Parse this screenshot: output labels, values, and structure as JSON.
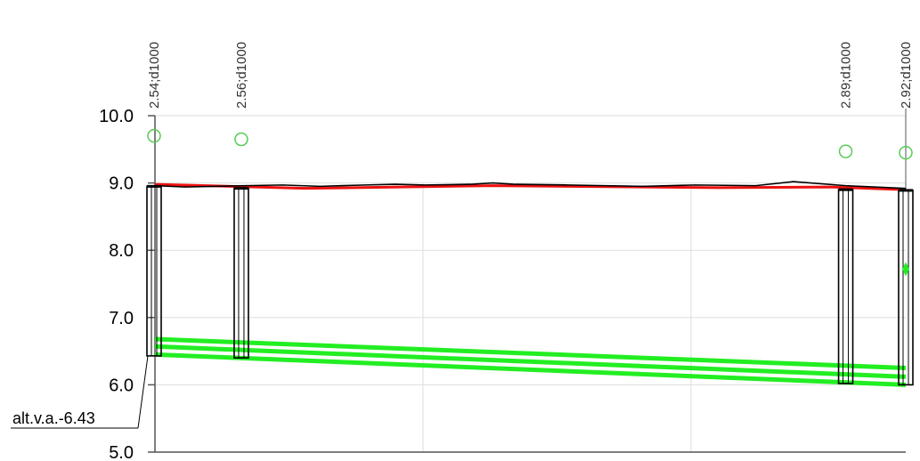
{
  "profile": {
    "y_axis": {
      "ticks": [
        "10.0",
        "9.0",
        "8.0",
        "7.0",
        "6.0",
        "5.0"
      ],
      "range": [
        5.0,
        10.0
      ]
    },
    "wells": [
      {
        "label": "2.54;d1000",
        "station": 0.0,
        "top": 8.95,
        "bottom": 6.43,
        "marker": 9.7
      },
      {
        "label": "2.56;d1000",
        "station": 0.115,
        "top": 8.92,
        "bottom": 6.4,
        "marker": 9.65
      },
      {
        "label": "2.89;d1000",
        "station": 0.92,
        "top": 8.9,
        "bottom": 6.02,
        "marker": 9.47
      },
      {
        "label": "2.92;d1000",
        "station": 1.0,
        "top": 8.89,
        "bottom": 6.0,
        "marker": 9.45
      }
    ],
    "ground_line": [
      [
        0,
        8.96
      ],
      [
        0.04,
        8.94
      ],
      [
        0.12,
        8.96
      ],
      [
        0.17,
        8.97
      ],
      [
        0.22,
        8.95
      ],
      [
        0.28,
        8.97
      ],
      [
        0.32,
        8.98
      ],
      [
        0.36,
        8.97
      ],
      [
        0.42,
        8.98
      ],
      [
        0.45,
        9.0
      ],
      [
        0.48,
        8.98
      ],
      [
        0.55,
        8.97
      ],
      [
        0.6,
        8.96
      ],
      [
        0.65,
        8.95
      ],
      [
        0.72,
        8.97
      ],
      [
        0.8,
        8.96
      ],
      [
        0.85,
        9.02
      ],
      [
        0.92,
        8.96
      ],
      [
        1.0,
        8.92
      ]
    ],
    "surface_line": [
      [
        0,
        8.98
      ],
      [
        0.2,
        8.92
      ],
      [
        0.45,
        8.96
      ],
      [
        0.55,
        8.95
      ],
      [
        0.75,
        8.93
      ],
      [
        0.9,
        8.94
      ],
      [
        1.0,
        8.9
      ]
    ],
    "pipe_lines": [
      {
        "start": 6.68,
        "end": 6.25
      },
      {
        "start": 6.57,
        "end": 6.12
      },
      {
        "start": 6.45,
        "end": 6.0
      }
    ],
    "point_marker": {
      "station": 1.0,
      "value": 7.72
    },
    "callout": {
      "text": "alt.v.a.-6.43"
    },
    "colors": {
      "ground": "#000000",
      "surface": "#ee1111",
      "pipe": "#22ee22",
      "marker_ring": "#55cc55",
      "grid": "#dddddd",
      "axis": "#555555"
    }
  }
}
